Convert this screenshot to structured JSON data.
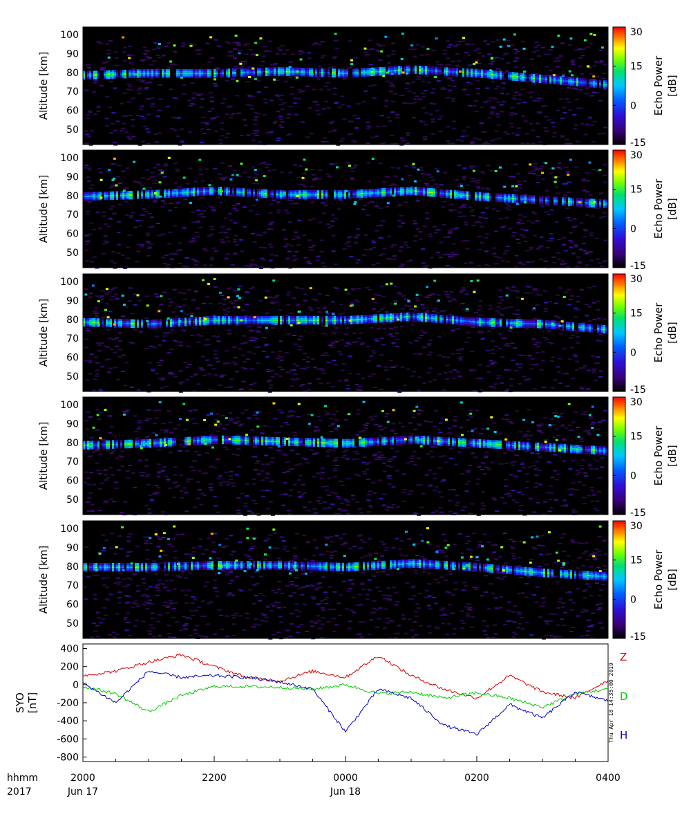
{
  "figure": {
    "radar_panels": [
      {
        "id": "beam1",
        "ylabel": "Altitude  [km]",
        "cbar_label": "Echo Power\n[dB]"
      },
      {
        "id": "beam2",
        "ylabel": "Altitude  [km]",
        "cbar_label": "Echo Power\n[dB]"
      },
      {
        "id": "beam3",
        "ylabel": "Altitude  [km]",
        "cbar_label": "Echo Power\n[dB]"
      },
      {
        "id": "beam4",
        "ylabel": "Altitude  [km]",
        "cbar_label": "Echo Power\n[dB]"
      },
      {
        "id": "beam5",
        "ylabel": "Altitude  [km]",
        "cbar_label": "Echo Power\n[dB]"
      }
    ],
    "altitude_ticks": [
      "100",
      "90",
      "80",
      "70",
      "60",
      "50"
    ],
    "colorbar_ticks": [
      "30",
      "15",
      "0",
      "-15"
    ],
    "mag_panel": {
      "ylabel_station": "SYO",
      "ylabel_unit": "[nT]",
      "yticks": [
        "400",
        "200",
        "0",
        "-200",
        "-400",
        "-600",
        "-800"
      ],
      "component_labels": {
        "Z": "Z",
        "D": "D",
        "H": "H"
      },
      "stamp": "Thu Apr 18 14:35:00 2019"
    },
    "xaxis": {
      "row1_label": "hhmm",
      "row2_label": "2017",
      "ticks": [
        "2000",
        "2200",
        "0000",
        "0200",
        "0400"
      ],
      "date_labels": [
        "Jun 17",
        "Jun 18"
      ]
    },
    "colors": {
      "Z": "#d40000",
      "D": "#00cc00",
      "H": "#0000c0"
    }
  },
  "chart_data": [
    {
      "type": "heatmap",
      "title": "",
      "xlabel": "hhmm",
      "ylabel": "Altitude  [km]",
      "colorbar_label": "Echo Power [dB]",
      "color_range": [
        -15,
        30
      ],
      "ylim": [
        42,
        104
      ],
      "xlim": [
        "2017-06-17 20:00",
        "2017-06-18 04:00"
      ],
      "panels": 5,
      "echo_layer_altitude_km": {
        "x": [
          "2000",
          "2100",
          "2200",
          "2300",
          "0000",
          "0100",
          "0200",
          "0300",
          "0400"
        ],
        "beam1": [
          79,
          80,
          80,
          81,
          80,
          82,
          80,
          77,
          74
        ],
        "beam2": [
          80,
          81,
          83,
          81,
          81,
          83,
          80,
          78,
          76
        ],
        "beam3": [
          79,
          78,
          80,
          80,
          80,
          82,
          79,
          78,
          75
        ],
        "beam4": [
          79,
          80,
          82,
          81,
          80,
          82,
          80,
          78,
          76
        ],
        "beam5": [
          80,
          80,
          81,
          81,
          80,
          82,
          80,
          77,
          75
        ]
      }
    },
    {
      "type": "line",
      "title": "",
      "ylabel": "SYO [nT]",
      "ylim": [
        -850,
        450
      ],
      "x": [
        "2000",
        "2030",
        "2100",
        "2130",
        "2200",
        "2230",
        "2300",
        "2330",
        "0000",
        "0030",
        "0100",
        "0130",
        "0200",
        "0230",
        "0300",
        "0330",
        "0400"
      ],
      "series": [
        {
          "name": "Z",
          "values": [
            100,
            150,
            250,
            330,
            200,
            80,
            40,
            150,
            80,
            320,
            100,
            -50,
            -150,
            100,
            -80,
            -150,
            50
          ]
        },
        {
          "name": "D",
          "values": [
            -20,
            -100,
            -300,
            -120,
            -20,
            -20,
            -30,
            -50,
            0,
            -100,
            -80,
            -150,
            -90,
            -150,
            -250,
            -100,
            -50
          ]
        },
        {
          "name": "H",
          "values": [
            20,
            -200,
            150,
            80,
            100,
            80,
            30,
            -50,
            -520,
            -50,
            -150,
            -450,
            -550,
            -220,
            -370,
            -80,
            -180
          ]
        }
      ]
    }
  ]
}
